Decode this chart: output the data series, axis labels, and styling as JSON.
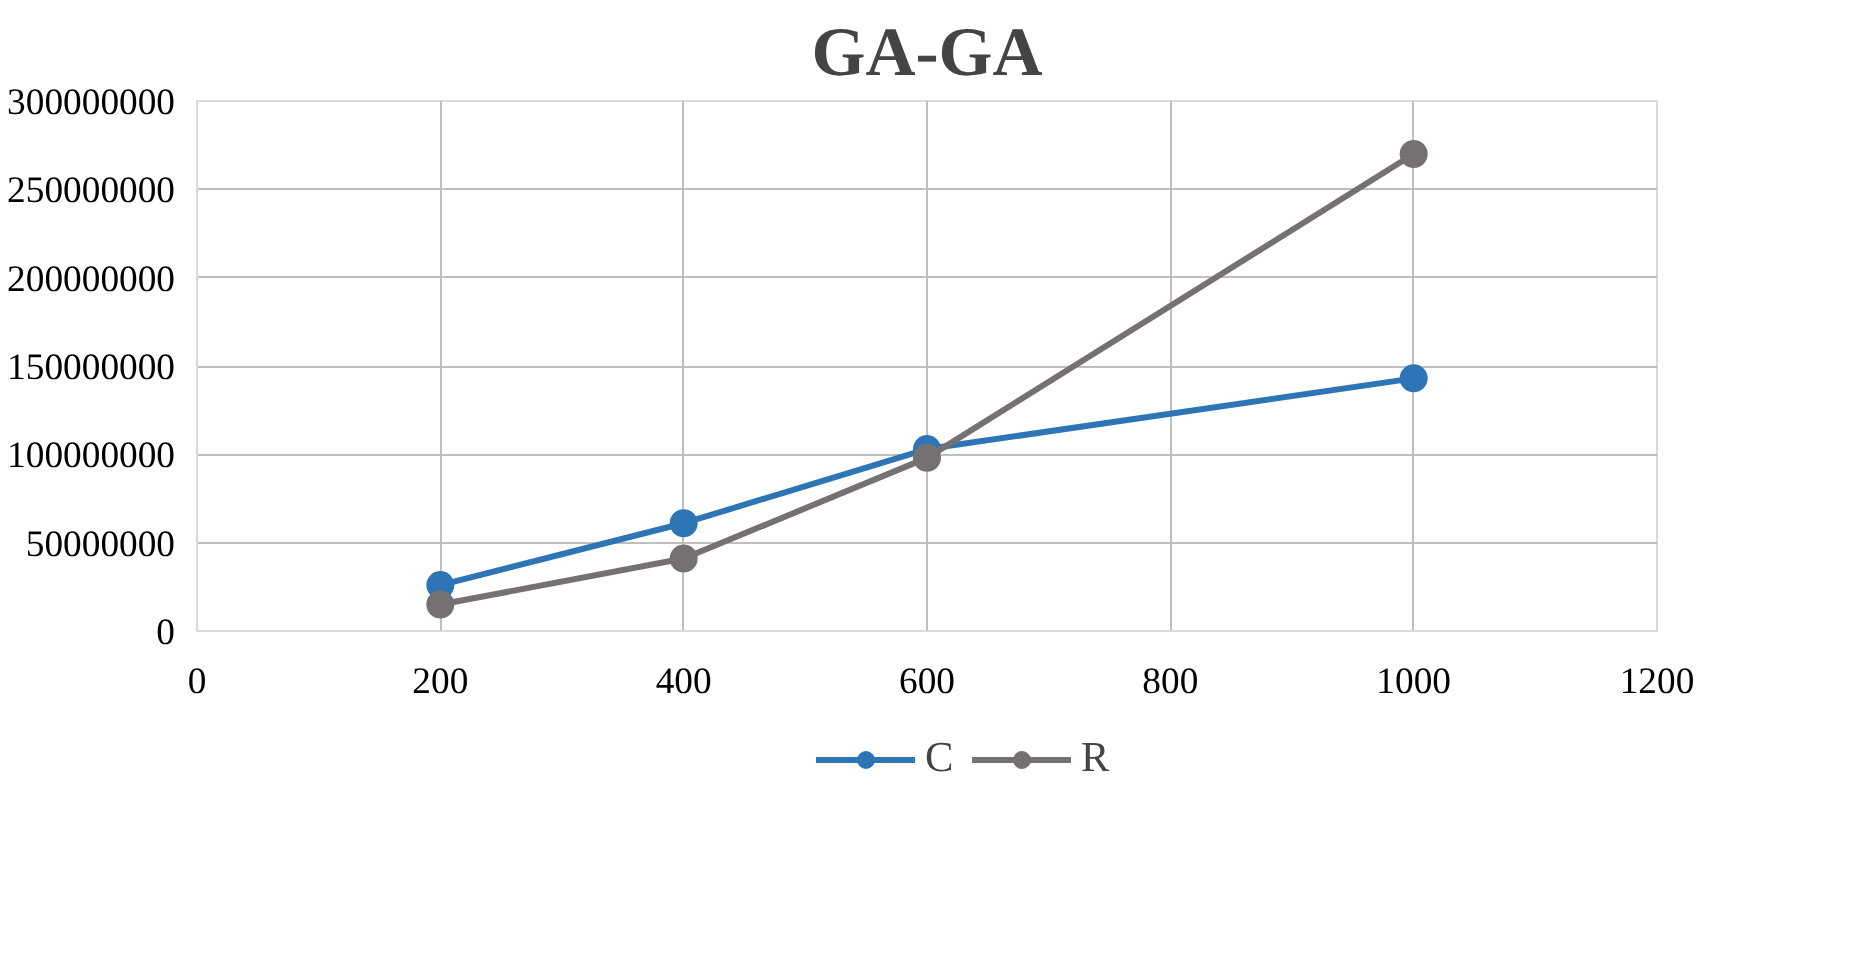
{
  "chart_data": {
    "type": "line",
    "title": "GA-GA",
    "x": [
      200,
      400,
      600,
      1000
    ],
    "series": [
      {
        "name": "C",
        "color": "#2e75b6",
        "values": [
          26000000,
          61000000,
          103000000,
          143000000
        ]
      },
      {
        "name": "R",
        "color": "#767171",
        "values": [
          15000000,
          41000000,
          98000000,
          270000000
        ]
      }
    ],
    "xlim": [
      0,
      1200
    ],
    "xticks": [
      0,
      200,
      400,
      600,
      800,
      1000,
      1200
    ],
    "ylim": [
      0,
      300000000
    ],
    "yticks": [
      0,
      50000000,
      100000000,
      150000000,
      200000000,
      250000000,
      300000000
    ],
    "grid": true,
    "legend": "bottom",
    "marker": "circle",
    "line_style": "solid"
  }
}
